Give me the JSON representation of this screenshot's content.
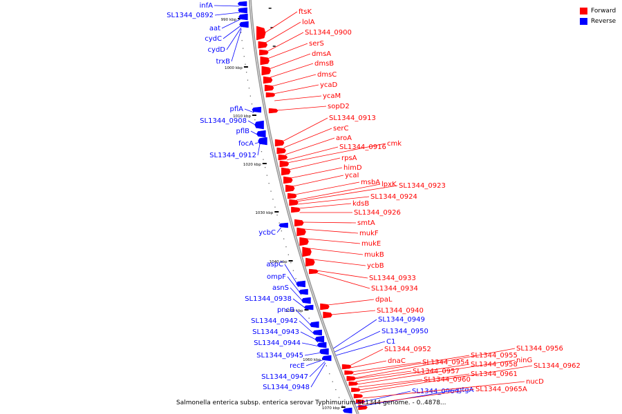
{
  "legend": {
    "forward_label": "Forward",
    "reverse_label": "Reverse",
    "forward_color": "#ff0000",
    "reverse_color": "#0000ff"
  },
  "caption": "Salmonella enterica subsp. enterica serovar Typhimurium SL1344 genome. - 0..4878...",
  "colors": {
    "backbone": "#999999",
    "forward": "#ff0000",
    "reverse": "#0000ff",
    "tick": "#000000"
  },
  "ticks": [
    "990 kbp",
    "1000 kbp",
    "1010 kbp",
    "1020 kbp",
    "1030 kbp",
    "1040 kbp",
    "1050 kbp",
    "1060 kbp",
    "1070 kbp"
  ],
  "reverse_genes": [
    "infA",
    "SL1344_0892",
    "aat",
    "cydC",
    "cydD",
    "trxB",
    "pflA",
    "SL1344_0908",
    "pflB",
    "focA",
    "SL1344_0912",
    "ycbC",
    "aspC",
    "ompF",
    "asnS",
    "SL1344_0938",
    "pncB",
    "SL1344_0942",
    "SL1344_0943",
    "SL1344_0944",
    "SL1344_0945",
    "recE",
    "SL1344_0947",
    "SL1344_0948",
    "SL1344_0949",
    "SL1344_0950",
    "C1",
    "SL1344_0964",
    "gtgA"
  ],
  "forward_genes": [
    "ftsK",
    "lolA",
    "SL1344_0900",
    "serS",
    "dmsA",
    "dmsB",
    "dmsC",
    "ycaD",
    "ycaM",
    "sopD2",
    "SL1344_0913",
    "serC",
    "aroA",
    "SL1344_0916",
    "cmk",
    "rpsA",
    "himD",
    "ycaI",
    "msbA",
    "lpxK",
    "SL1344_0923",
    "SL1344_0924",
    "kdsB",
    "SL1344_0926",
    "smtA",
    "mukF",
    "mukE",
    "mukB",
    "ycbB",
    "SL1344_0933",
    "SL1344_0934",
    "dpaL",
    "SL1344_0940",
    "SL1344_0952",
    "dnaC",
    "SL1344_0954",
    "SL1344_0955",
    "SL1344_0956",
    "SL1344_0957",
    "SL1344_0958",
    "ninG",
    "SL1344_0960",
    "SL1344_0961",
    "SL1344_0962",
    "nucD",
    "SL1344_0965A"
  ]
}
